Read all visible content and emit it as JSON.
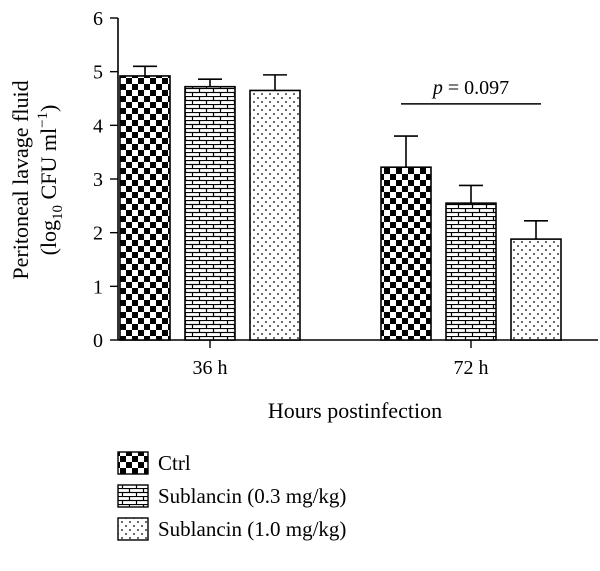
{
  "chart_data": {
    "type": "bar",
    "title": "",
    "xlabel": "Hours postinfection",
    "ylabel_main": "Peritoneal lavage fluid",
    "ylabel_unit_prefix": "(log",
    "ylabel_unit_sub": "10",
    "ylabel_unit_mid": " CFU ml",
    "ylabel_unit_sup": "−1",
    "ylabel_unit_suffix": ")",
    "categories": [
      "36 h",
      "72 h"
    ],
    "ylim": [
      0,
      6
    ],
    "yticks": [
      0,
      1,
      2,
      3,
      4,
      5,
      6
    ],
    "grid": false,
    "legend_position": "bottom-left",
    "series": [
      {
        "name": "Ctrl",
        "pattern": "checker",
        "values": [
          4.92,
          3.22
        ],
        "errors": [
          0.18,
          0.58
        ]
      },
      {
        "name": "Sublancin (0.3 mg/kg)",
        "pattern": "brick",
        "values": [
          4.72,
          2.55
        ],
        "errors": [
          0.14,
          0.33
        ]
      },
      {
        "name": "Sublancin (1.0 mg/kg)",
        "pattern": "dots",
        "values": [
          4.65,
          1.88
        ],
        "errors": [
          0.29,
          0.34
        ]
      }
    ],
    "annotation": {
      "italic_part": "p",
      "rest": " = 0.097",
      "category": "72 h",
      "value": 4.4
    }
  }
}
